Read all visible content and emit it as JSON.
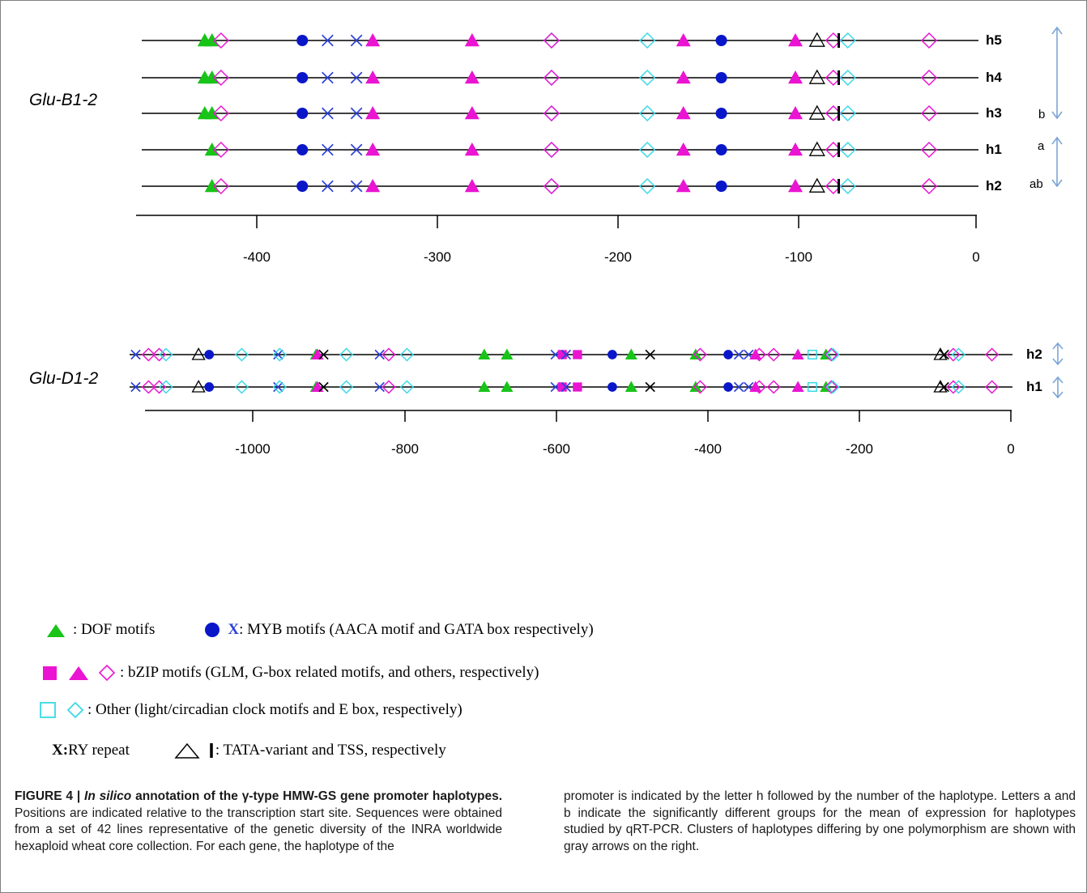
{
  "figure": {
    "gene_b": "Glu-B1-2",
    "gene_d": "Glu-D1-2",
    "panel_b": {
      "haplotypes": [
        {
          "label": "h5",
          "group": ""
        },
        {
          "label": "h4",
          "group": ""
        },
        {
          "label": "h3",
          "group": "b"
        },
        {
          "label": "h1",
          "group": "a"
        },
        {
          "label": "h2",
          "group": "ab"
        }
      ],
      "ticks": [
        "-400",
        "-300",
        "-200",
        "-100",
        "0"
      ]
    },
    "panel_d": {
      "haplotypes": [
        {
          "label": "h2",
          "group": ""
        },
        {
          "label": "h1",
          "group": ""
        }
      ],
      "ticks": [
        "-1000",
        "-800",
        "-600",
        "-400",
        "-200",
        "0"
      ]
    }
  },
  "legend": {
    "dof": ": DOF motifs",
    "myb_x": "X",
    "myb": ": MYB motifs (AACA motif and GATA box respectively)",
    "bzip": ": bZIP motifs (GLM, G-box related motifs, and others, respectively)",
    "other": " : Other (light/circadian clock motifs and E box, respectively)",
    "ry_x": "X:",
    "ry": " RY repeat",
    "tata": ": TATA-variant and TSS, respectively"
  },
  "caption": {
    "figure_label": "FIGURE 4 | ",
    "title_italic": "In silico",
    "title_rest": " annotation of the γ-type HMW-GS gene promoter haplotypes.",
    "body_left": " Positions are indicated relative to the transcription start site. Sequences were obtained from a set of 42 lines representative of the genetic diversity of the INRA worldwide hexaploid wheat core collection. For each gene, the haplotype of the",
    "body_right": "promoter is indicated by the letter h followed by the number of the haplotype. Letters a and b indicate the significantly different groups for the mean of expression for haplotypes studied by qRT-PCR. Clusters of haplotypes differing by one polymorphism are shown with gray arrows on the right."
  },
  "colors": {
    "dof_green": "#18c418",
    "myb_blue": "#0a17c9",
    "myb_x_blue": "#2a3fd8",
    "bzip_magenta": "#ea14d2",
    "other_cyan": "#3ad9e6",
    "gray_arrow": "#7ba6d6"
  },
  "marker_types": {
    "tri_g": "DOF motif",
    "circ_b": "MYB AACA motif",
    "x_b": "MYB GATA box",
    "sq_m": "bZIP GLM",
    "tri_m": "bZIP G-box related motif",
    "dia_m": "bZIP other",
    "sq_c": "light/circadian clock motif",
    "dia_c": "E box",
    "x_k": "RY repeat",
    "tri_o": "TATA-variant",
    "tss": "TSS"
  },
  "chart_data": {
    "type": "scatter",
    "panels": [
      {
        "gene": "Glu-B1-2",
        "xlim": [
          -460,
          0
        ],
        "ticks": [
          -400,
          -300,
          -200,
          -100,
          0
        ],
        "rows": [
          {
            "haplotype": "h5",
            "group": "",
            "markers": [
              {
                "t": "tri_g",
                "x": -427
              },
              {
                "t": "tri_g",
                "x": -423
              },
              {
                "t": "dia_m",
                "x": -418
              },
              {
                "t": "circ_b",
                "x": -373
              },
              {
                "t": "x_b",
                "x": -359
              },
              {
                "t": "x_b",
                "x": -343
              },
              {
                "t": "tri_m",
                "x": -334
              },
              {
                "t": "tri_m",
                "x": -279
              },
              {
                "t": "dia_c",
                "x": -235
              },
              {
                "t": "dia_m",
                "x": -235
              },
              {
                "t": "dia_c",
                "x": -182
              },
              {
                "t": "tri_m",
                "x": -162
              },
              {
                "t": "circ_b",
                "x": -141
              },
              {
                "t": "tri_m",
                "x": -100
              },
              {
                "t": "tri_o",
                "x": -88
              },
              {
                "t": "dia_m",
                "x": -79
              },
              {
                "t": "tss",
                "x": -76
              },
              {
                "t": "dia_c",
                "x": -71
              },
              {
                "t": "dia_m",
                "x": -26
              }
            ]
          },
          {
            "haplotype": "h4",
            "group": "",
            "markers": [
              {
                "t": "tri_g",
                "x": -427
              },
              {
                "t": "tri_g",
                "x": -423
              },
              {
                "t": "dia_m",
                "x": -418
              },
              {
                "t": "circ_b",
                "x": -373
              },
              {
                "t": "x_b",
                "x": -359
              },
              {
                "t": "x_b",
                "x": -343
              },
              {
                "t": "tri_m",
                "x": -334
              },
              {
                "t": "tri_m",
                "x": -279
              },
              {
                "t": "dia_c",
                "x": -235
              },
              {
                "t": "dia_m",
                "x": -235
              },
              {
                "t": "dia_c",
                "x": -182
              },
              {
                "t": "tri_m",
                "x": -162
              },
              {
                "t": "circ_b",
                "x": -141
              },
              {
                "t": "tri_m",
                "x": -100
              },
              {
                "t": "tri_o",
                "x": -88
              },
              {
                "t": "dia_m",
                "x": -79
              },
              {
                "t": "tss",
                "x": -76
              },
              {
                "t": "dia_c",
                "x": -71
              },
              {
                "t": "dia_m",
                "x": -26
              }
            ]
          },
          {
            "haplotype": "h3",
            "group": "b",
            "markers": [
              {
                "t": "tri_g",
                "x": -427
              },
              {
                "t": "tri_g",
                "x": -423
              },
              {
                "t": "dia_m",
                "x": -418
              },
              {
                "t": "circ_b",
                "x": -373
              },
              {
                "t": "x_b",
                "x": -359
              },
              {
                "t": "x_b",
                "x": -343
              },
              {
                "t": "tri_m",
                "x": -334
              },
              {
                "t": "tri_m",
                "x": -279
              },
              {
                "t": "dia_c",
                "x": -235
              },
              {
                "t": "dia_m",
                "x": -235
              },
              {
                "t": "dia_c",
                "x": -182
              },
              {
                "t": "tri_m",
                "x": -162
              },
              {
                "t": "circ_b",
                "x": -141
              },
              {
                "t": "tri_m",
                "x": -100
              },
              {
                "t": "tri_o",
                "x": -88
              },
              {
                "t": "dia_m",
                "x": -79
              },
              {
                "t": "tss",
                "x": -76
              },
              {
                "t": "dia_c",
                "x": -71
              },
              {
                "t": "dia_m",
                "x": -26
              }
            ]
          },
          {
            "haplotype": "h1",
            "group": "a",
            "markers": [
              {
                "t": "tri_g",
                "x": -423
              },
              {
                "t": "dia_m",
                "x": -418
              },
              {
                "t": "circ_b",
                "x": -373
              },
              {
                "t": "x_b",
                "x": -359
              },
              {
                "t": "x_b",
                "x": -343
              },
              {
                "t": "tri_m",
                "x": -334
              },
              {
                "t": "tri_m",
                "x": -279
              },
              {
                "t": "dia_c",
                "x": -235
              },
              {
                "t": "dia_m",
                "x": -235
              },
              {
                "t": "dia_c",
                "x": -182
              },
              {
                "t": "tri_m",
                "x": -162
              },
              {
                "t": "circ_b",
                "x": -141
              },
              {
                "t": "tri_m",
                "x": -100
              },
              {
                "t": "tri_o",
                "x": -88
              },
              {
                "t": "dia_m",
                "x": -79
              },
              {
                "t": "tss",
                "x": -76
              },
              {
                "t": "dia_c",
                "x": -71
              },
              {
                "t": "dia_m",
                "x": -26
              }
            ]
          },
          {
            "haplotype": "h2",
            "group": "ab",
            "markers": [
              {
                "t": "tri_g",
                "x": -423
              },
              {
                "t": "dia_m",
                "x": -418
              },
              {
                "t": "circ_b",
                "x": -373
              },
              {
                "t": "x_b",
                "x": -359
              },
              {
                "t": "x_b",
                "x": -343
              },
              {
                "t": "tri_m",
                "x": -334
              },
              {
                "t": "tri_m",
                "x": -279
              },
              {
                "t": "dia_c",
                "x": -235
              },
              {
                "t": "dia_m",
                "x": -235
              },
              {
                "t": "dia_c",
                "x": -182
              },
              {
                "t": "tri_m",
                "x": -162
              },
              {
                "t": "circ_b",
                "x": -141
              },
              {
                "t": "tri_m",
                "x": -100
              },
              {
                "t": "tri_o",
                "x": -88
              },
              {
                "t": "dia_m",
                "x": -79
              },
              {
                "t": "tss",
                "x": -76
              },
              {
                "t": "dia_c",
                "x": -71
              },
              {
                "t": "dia_m",
                "x": -26
              }
            ]
          }
        ]
      },
      {
        "gene": "Glu-D1-2",
        "xlim": [
          -1170,
          0
        ],
        "ticks": [
          -1000,
          -800,
          -600,
          -400,
          -200,
          0
        ],
        "rows": [
          {
            "haplotype": "h2",
            "group": "",
            "markers": [
              {
                "t": "x_b",
                "x": -1155
              },
              {
                "t": "dia_m",
                "x": -1138
              },
              {
                "t": "dia_m",
                "x": -1124
              },
              {
                "t": "dia_c",
                "x": -1115
              },
              {
                "t": "tri_o",
                "x": -1072
              },
              {
                "t": "circ_b",
                "x": -1058
              },
              {
                "t": "dia_c",
                "x": -1015
              },
              {
                "t": "x_b",
                "x": -967
              },
              {
                "t": "dia_c",
                "x": -965
              },
              {
                "t": "tri_g",
                "x": -917
              },
              {
                "t": "tri_m",
                "x": -915
              },
              {
                "t": "x_k",
                "x": -907
              },
              {
                "t": "dia_c",
                "x": -877
              },
              {
                "t": "x_b",
                "x": -833
              },
              {
                "t": "dia_m",
                "x": -821
              },
              {
                "t": "dia_c",
                "x": -797
              },
              {
                "t": "tri_g",
                "x": -695
              },
              {
                "t": "tri_g",
                "x": -665
              },
              {
                "t": "x_b",
                "x": -601
              },
              {
                "t": "sq_m",
                "x": -592
              },
              {
                "t": "x_b",
                "x": -587
              },
              {
                "t": "sq_m",
                "x": -572
              },
              {
                "t": "circ_b",
                "x": -526
              },
              {
                "t": "tri_g",
                "x": -501
              },
              {
                "t": "x_k",
                "x": -476
              },
              {
                "t": "tri_g",
                "x": -416
              },
              {
                "t": "dia_m",
                "x": -410
              },
              {
                "t": "circ_b",
                "x": -373
              },
              {
                "t": "x_b",
                "x": -359
              },
              {
                "t": "x_b",
                "x": -346
              },
              {
                "t": "tri_m",
                "x": -337
              },
              {
                "t": "dia_m",
                "x": -332
              },
              {
                "t": "dia_m",
                "x": -313
              },
              {
                "t": "tri_m",
                "x": -281
              },
              {
                "t": "sq_c",
                "x": -262
              },
              {
                "t": "tri_g",
                "x": -244
              },
              {
                "t": "dia_m",
                "x": -237
              },
              {
                "t": "dia_c",
                "x": -235
              },
              {
                "t": "tri_o",
                "x": -93
              },
              {
                "t": "x_k",
                "x": -88
              },
              {
                "t": "dia_m",
                "x": -76
              },
              {
                "t": "dia_c",
                "x": -69
              },
              {
                "t": "dia_m",
                "x": -25
              }
            ]
          },
          {
            "haplotype": "h1",
            "group": "",
            "markers": [
              {
                "t": "x_b",
                "x": -1155
              },
              {
                "t": "dia_m",
                "x": -1138
              },
              {
                "t": "dia_m",
                "x": -1124
              },
              {
                "t": "dia_c",
                "x": -1115
              },
              {
                "t": "tri_o",
                "x": -1072
              },
              {
                "t": "circ_b",
                "x": -1058
              },
              {
                "t": "dia_c",
                "x": -1015
              },
              {
                "t": "x_b",
                "x": -967
              },
              {
                "t": "dia_c",
                "x": -965
              },
              {
                "t": "tri_g",
                "x": -917
              },
              {
                "t": "tri_m",
                "x": -915
              },
              {
                "t": "x_k",
                "x": -907
              },
              {
                "t": "dia_c",
                "x": -877
              },
              {
                "t": "x_b",
                "x": -833
              },
              {
                "t": "dia_m",
                "x": -821
              },
              {
                "t": "dia_c",
                "x": -797
              },
              {
                "t": "tri_g",
                "x": -695
              },
              {
                "t": "tri_g",
                "x": -665
              },
              {
                "t": "x_b",
                "x": -601
              },
              {
                "t": "sq_m",
                "x": -592
              },
              {
                "t": "x_b",
                "x": -587
              },
              {
                "t": "sq_m",
                "x": -572
              },
              {
                "t": "circ_b",
                "x": -526
              },
              {
                "t": "tri_g",
                "x": -501
              },
              {
                "t": "x_k",
                "x": -476
              },
              {
                "t": "tri_g",
                "x": -416
              },
              {
                "t": "dia_m",
                "x": -410
              },
              {
                "t": "circ_b",
                "x": -373
              },
              {
                "t": "x_b",
                "x": -359
              },
              {
                "t": "x_b",
                "x": -346
              },
              {
                "t": "tri_m",
                "x": -337
              },
              {
                "t": "dia_m",
                "x": -332
              },
              {
                "t": "dia_m",
                "x": -313
              },
              {
                "t": "tri_m",
                "x": -281
              },
              {
                "t": "sq_c",
                "x": -262
              },
              {
                "t": "tri_g",
                "x": -244
              },
              {
                "t": "dia_m",
                "x": -237
              },
              {
                "t": "dia_c",
                "x": -235
              },
              {
                "t": "tri_o",
                "x": -93
              },
              {
                "t": "x_k",
                "x": -88
              },
              {
                "t": "dia_m",
                "x": -76
              },
              {
                "t": "dia_c",
                "x": -69
              },
              {
                "t": "dia_m",
                "x": -25
              }
            ]
          }
        ]
      }
    ]
  }
}
